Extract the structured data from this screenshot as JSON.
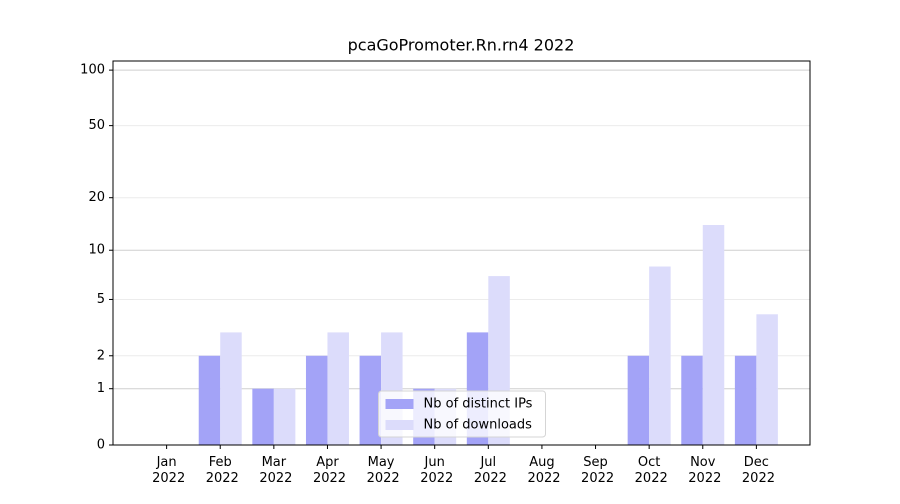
{
  "chart_data": {
    "type": "bar",
    "title": "pcaGoPromoter.Rn.rn4 2022",
    "categories": [
      "Jan 2022",
      "Feb 2022",
      "Mar 2022",
      "Apr 2022",
      "May 2022",
      "Jun 2022",
      "Jul 2022",
      "Aug 2022",
      "Sep 2022",
      "Oct 2022",
      "Nov 2022",
      "Dec 2022"
    ],
    "series": [
      {
        "name": "Nb of distinct IPs",
        "color": "#a3a3f7",
        "values": [
          0,
          2,
          1,
          2,
          2,
          1,
          3,
          0,
          0,
          2,
          2,
          2
        ]
      },
      {
        "name": "Nb of downloads",
        "color": "#dcdcfb",
        "values": [
          0,
          3,
          1,
          3,
          3,
          1,
          7,
          0,
          0,
          8,
          14,
          4
        ]
      }
    ],
    "yscale": "symlog",
    "ylim": [
      0,
      112
    ],
    "yticks": [
      0,
      1,
      2,
      5,
      10,
      20,
      50,
      100
    ],
    "grid": true,
    "legend": "lower center"
  }
}
